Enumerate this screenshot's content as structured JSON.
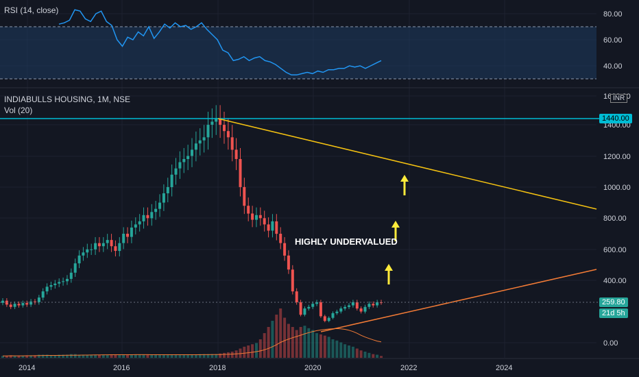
{
  "colors": {
    "background": "#131722",
    "up": "#26a69a",
    "down": "#ef5350",
    "rsi_line": "#2196f3",
    "rsi_band": "#1e3a5f",
    "resistance": "#00bcd4",
    "upper_trend": "#f5c211",
    "lower_trend": "#f57c36",
    "arrows": "#ffeb3b",
    "vol_ma": "#f57c36"
  },
  "rsi_pane": {
    "title": "RSI (14, close)",
    "ticks": [
      "80.00",
      "60.00",
      "40.00"
    ],
    "upper_band": 70,
    "lower_band": 30,
    "series": [
      72,
      73,
      75,
      83,
      82,
      76,
      74,
      80,
      82,
      74,
      71,
      60,
      55,
      62,
      60,
      66,
      63,
      70,
      61,
      66,
      72,
      69,
      73,
      70,
      71,
      68,
      70,
      73,
      68,
      64,
      60,
      52,
      50,
      44,
      45,
      47,
      44,
      46,
      47,
      44,
      43,
      41,
      38,
      35,
      33,
      33,
      34,
      35,
      34,
      36,
      35,
      37,
      37,
      38,
      38,
      40,
      39,
      40,
      38,
      40,
      42,
      44
    ]
  },
  "main_pane": {
    "title": "INDIABULLS HOUSING, 1M, NSE",
    "volume_title": "Vol (20)",
    "currency": "INR",
    "ticks": [
      "1600.00",
      "1400.00",
      "1200.00",
      "1000.00",
      "800.00",
      "600.00",
      "400.00",
      "0.00"
    ],
    "resistance_price": "1440.00",
    "last_price": "259.80",
    "countdown": "21d 5h",
    "annotation": "HIGHLY UNDERVALUED",
    "x_ticks": [
      "2014",
      "2016",
      "2018",
      "2020",
      "2022",
      "2024"
    ],
    "candles_note": "monthly OHLC approx",
    "closes": [
      270,
      245,
      230,
      250,
      240,
      255,
      245,
      265,
      260,
      290,
      330,
      360,
      370,
      380,
      390,
      395,
      410,
      450,
      510,
      560,
      580,
      600,
      600,
      640,
      620,
      640,
      660,
      620,
      590,
      640,
      700,
      680,
      740,
      760,
      780,
      820,
      800,
      840,
      860,
      900,
      960,
      1000,
      1080,
      1120,
      1160,
      1180,
      1200,
      1240,
      1280,
      1300,
      1320,
      1400,
      1420,
      1440,
      1400,
      1360,
      1320,
      1240,
      1180,
      1000,
      880,
      830,
      790,
      820,
      800,
      760,
      720,
      780,
      700,
      640,
      560,
      470,
      330,
      260,
      180,
      220,
      230,
      250,
      260,
      170,
      140,
      160,
      190,
      200,
      220,
      230,
      240,
      260,
      220,
      200,
      230,
      250,
      240,
      260,
      259.8
    ],
    "volume": [
      3,
      3,
      4,
      3,
      3,
      3,
      4,
      4,
      4,
      5,
      5,
      5,
      4,
      4,
      5,
      5,
      5,
      6,
      6,
      5,
      5,
      5,
      5,
      5,
      5,
      5,
      5,
      5,
      5,
      5,
      5,
      5,
      5,
      5,
      5,
      5,
      5,
      5,
      5,
      5,
      5,
      5,
      5,
      5,
      5,
      5,
      5,
      5,
      5,
      6,
      6,
      6,
      6,
      6,
      7,
      8,
      9,
      10,
      12,
      15,
      18,
      20,
      22,
      24,
      30,
      40,
      50,
      60,
      70,
      80,
      65,
      55,
      50,
      45,
      50,
      52,
      48,
      45,
      40,
      38,
      36,
      34,
      30,
      28,
      25,
      22,
      20,
      18,
      15,
      12,
      10,
      8,
      6,
      5
    ]
  },
  "chart_data": {
    "type": "line",
    "title": "INDIABULLS HOUSING, 1M, NSE",
    "xlabel": "",
    "ylabel": "INR",
    "x": [
      "2014",
      "2016",
      "2018",
      "2020",
      "2022",
      "2024"
    ],
    "ylim": [
      -100,
      1640
    ],
    "series": [
      {
        "name": "INDIABULLS HOUSING",
        "values": [
          270,
          560,
          1300,
          1440,
          180,
          259.8
        ]
      }
    ]
  }
}
